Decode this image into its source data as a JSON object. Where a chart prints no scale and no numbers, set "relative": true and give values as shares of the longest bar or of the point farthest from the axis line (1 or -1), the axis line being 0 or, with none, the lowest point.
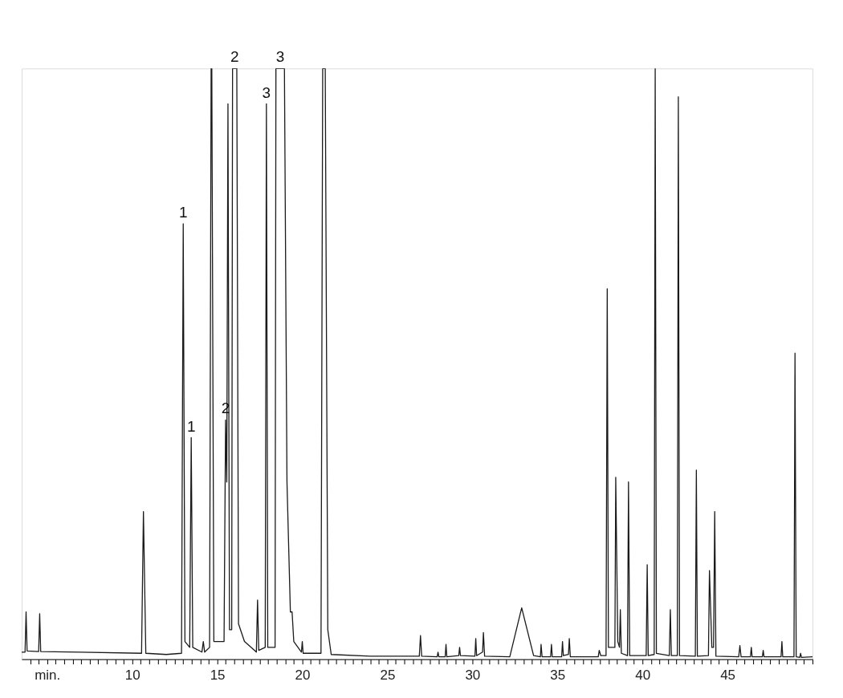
{
  "chart_data": {
    "type": "line",
    "relative": true,
    "marker": "none",
    "line_style": "solid",
    "grid": false,
    "tick_labels": "x",
    "x": [
      3.5,
      3.7,
      3.76,
      3.82,
      4.5,
      4.56,
      4.62,
      7.0,
      10.55,
      10.66,
      10.8,
      12.0,
      12.9,
      13.0,
      13.1,
      13.38,
      13.47,
      13.56,
      14.1,
      14.18,
      14.26,
      14.55,
      14.64,
      14.68,
      14.8,
      15.4,
      15.49,
      15.56,
      15.63,
      15.72,
      15.85,
      15.9,
      16.15,
      16.25,
      16.6,
      17.0,
      17.3,
      17.37,
      17.44,
      17.82,
      17.89,
      17.97,
      18.4,
      18.45,
      18.95,
      19.1,
      19.3,
      19.4,
      19.5,
      19.95,
      20.0,
      20.05,
      21.1,
      21.2,
      21.35,
      21.5,
      21.7,
      24.0,
      26.88,
      26.95,
      27.02,
      27.93,
      27.98,
      28.03,
      28.4,
      28.45,
      28.5,
      29.2,
      29.25,
      29.3,
      30.15,
      30.2,
      30.25,
      30.6,
      30.65,
      30.72,
      32.2,
      32.9,
      33.6,
      34.0,
      34.04,
      34.1,
      34.6,
      34.65,
      34.7,
      35.25,
      35.3,
      35.35,
      35.65,
      35.7,
      35.76,
      37.4,
      37.46,
      37.55,
      37.86,
      37.93,
      38.0,
      38.38,
      38.43,
      38.55,
      38.65,
      38.7,
      38.76,
      39.12,
      39.18,
      39.25,
      40.22,
      40.28,
      40.34,
      40.69,
      40.75,
      40.82,
      41.58,
      41.64,
      41.7,
      42.05,
      42.11,
      42.18,
      43.11,
      43.17,
      43.23,
      43.88,
      43.94,
      44.08,
      44.18,
      44.25,
      44.32,
      45.66,
      45.73,
      45.8,
      46.35,
      46.4,
      46.45,
      47.05,
      47.1,
      47.15,
      48.15,
      48.2,
      48.25,
      48.91,
      48.97,
      49.04,
      49.25,
      49.3,
      49.35,
      50.0
    ],
    "series": [
      {
        "color": "#1a1a1a",
        "values": [
          0.012,
          0.012,
          0.08,
          0.014,
          0.013,
          0.077,
          0.013,
          0.012,
          0.01,
          0.25,
          0.01,
          0.008,
          0.01,
          0.737,
          0.03,
          0.02,
          0.375,
          0.02,
          0.012,
          0.03,
          0.012,
          0.02,
          1.0,
          1.0,
          0.03,
          0.03,
          0.405,
          0.3,
          0.94,
          0.05,
          0.05,
          1.0,
          1.0,
          0.06,
          0.03,
          0.02,
          0.012,
          0.1,
          0.015,
          0.02,
          0.94,
          0.02,
          0.02,
          1.0,
          1.0,
          0.3,
          0.08,
          0.08,
          0.03,
          0.012,
          0.03,
          0.01,
          0.01,
          1.0,
          1.0,
          0.05,
          0.008,
          0.005,
          0.005,
          0.04,
          0.005,
          0.004,
          0.012,
          0.004,
          0.004,
          0.025,
          0.004,
          0.006,
          0.02,
          0.006,
          0.005,
          0.035,
          0.006,
          0.012,
          0.045,
          0.005,
          0.004,
          0.087,
          0.006,
          0.004,
          0.025,
          0.004,
          0.004,
          0.025,
          0.004,
          0.004,
          0.03,
          0.006,
          0.008,
          0.035,
          0.004,
          0.004,
          0.015,
          0.006,
          0.006,
          0.627,
          0.02,
          0.02,
          0.308,
          0.03,
          0.02,
          0.084,
          0.01,
          0.006,
          0.3,
          0.006,
          0.006,
          0.16,
          0.006,
          0.008,
          1.0,
          0.01,
          0.006,
          0.084,
          0.006,
          0.006,
          0.952,
          0.006,
          0.005,
          0.32,
          0.005,
          0.006,
          0.15,
          0.02,
          0.02,
          0.25,
          0.005,
          0.004,
          0.023,
          0.004,
          0.004,
          0.02,
          0.004,
          0.004,
          0.015,
          0.004,
          0.004,
          0.03,
          0.004,
          0.004,
          0.518,
          0.004,
          0.003,
          0.01,
          0.003,
          0.004
        ]
      }
    ],
    "xlim": [
      3.5,
      50
    ],
    "xticks": [
      {
        "value": 4,
        "label": null
      },
      {
        "value": 4.5,
        "label": null
      },
      {
        "value": 5,
        "label": "min."
      },
      {
        "value": 5.5,
        "label": null
      },
      {
        "value": 6,
        "label": null
      },
      {
        "value": 6.5,
        "label": null
      },
      {
        "value": 7,
        "label": null
      },
      {
        "value": 7.5,
        "label": null
      },
      {
        "value": 8,
        "label": null
      },
      {
        "value": 8.5,
        "label": null
      },
      {
        "value": 9,
        "label": null
      },
      {
        "value": 9.5,
        "label": null
      },
      10,
      {
        "value": 10.5,
        "label": null
      },
      {
        "value": 11,
        "label": null
      },
      {
        "value": 11.5,
        "label": null
      },
      {
        "value": 12,
        "label": null
      },
      {
        "value": 12.5,
        "label": null
      },
      {
        "value": 13,
        "label": null
      },
      {
        "value": 13.5,
        "label": null
      },
      {
        "value": 14,
        "label": null
      },
      {
        "value": 14.5,
        "label": null
      },
      15,
      {
        "value": 15.5,
        "label": null
      },
      {
        "value": 16,
        "label": null
      },
      {
        "value": 16.5,
        "label": null
      },
      {
        "value": 17,
        "label": null
      },
      {
        "value": 17.5,
        "label": null
      },
      {
        "value": 18,
        "label": null
      },
      {
        "value": 18.5,
        "label": null
      },
      {
        "value": 19,
        "label": null
      },
      {
        "value": 19.5,
        "label": null
      },
      20,
      {
        "value": 20.5,
        "label": null
      },
      {
        "value": 21,
        "label": null
      },
      {
        "value": 21.5,
        "label": null
      },
      {
        "value": 22,
        "label": null
      },
      {
        "value": 22.5,
        "label": null
      },
      {
        "value": 23,
        "label": null
      },
      {
        "value": 23.5,
        "label": null
      },
      {
        "value": 24,
        "label": null
      },
      {
        "value": 24.5,
        "label": null
      },
      25,
      {
        "value": 25.5,
        "label": null
      },
      {
        "value": 26,
        "label": null
      },
      {
        "value": 26.5,
        "label": null
      },
      {
        "value": 27,
        "label": null
      },
      {
        "value": 27.5,
        "label": null
      },
      {
        "value": 28,
        "label": null
      },
      {
        "value": 28.5,
        "label": null
      },
      {
        "value": 29,
        "label": null
      },
      {
        "value": 29.5,
        "label": null
      },
      30,
      {
        "value": 30.5,
        "label": null
      },
      {
        "value": 31,
        "label": null
      },
      {
        "value": 31.5,
        "label": null
      },
      {
        "value": 32,
        "label": null
      },
      {
        "value": 32.5,
        "label": null
      },
      {
        "value": 33,
        "label": null
      },
      {
        "value": 33.5,
        "label": null
      },
      {
        "value": 34,
        "label": null
      },
      {
        "value": 34.5,
        "label": null
      },
      35,
      {
        "value": 35.5,
        "label": null
      },
      {
        "value": 36,
        "label": null
      },
      {
        "value": 36.5,
        "label": null
      },
      {
        "value": 37,
        "label": null
      },
      {
        "value": 37.5,
        "label": null
      },
      {
        "value": 38,
        "label": null
      },
      {
        "value": 38.5,
        "label": null
      },
      {
        "value": 39,
        "label": null
      },
      {
        "value": 39.5,
        "label": null
      },
      40,
      {
        "value": 40.5,
        "label": null
      },
      {
        "value": 41,
        "label": null
      },
      {
        "value": 41.5,
        "label": null
      },
      {
        "value": 42,
        "label": null
      },
      {
        "value": 42.5,
        "label": null
      },
      {
        "value": 43,
        "label": null
      },
      {
        "value": 43.5,
        "label": null
      },
      {
        "value": 44,
        "label": null
      },
      {
        "value": 44.5,
        "label": null
      },
      45,
      {
        "value": 45.5,
        "label": null
      },
      {
        "value": 46,
        "label": null
      },
      {
        "value": 46.5,
        "label": null
      },
      {
        "value": 47,
        "label": null
      },
      {
        "value": 47.5,
        "label": null
      },
      {
        "value": 48,
        "label": null
      },
      {
        "value": 48.5,
        "label": null
      },
      {
        "value": 49,
        "label": null
      },
      {
        "value": 49.5,
        "label": null
      },
      {
        "value": 50,
        "label": null
      }
    ],
    "annotations": [
      {
        "text": "1",
        "x": 13.0,
        "y": 0.737
      },
      {
        "text": "1",
        "x": 13.47,
        "y": 0.375
      },
      {
        "text": "2",
        "x": 15.49,
        "y": 0.405
      },
      {
        "text": "2",
        "x": 16.02,
        "y": 1.0
      },
      {
        "text": "3",
        "x": 17.89,
        "y": 0.94
      },
      {
        "text": "3",
        "x": 18.7,
        "y": 1.0
      }
    ]
  }
}
